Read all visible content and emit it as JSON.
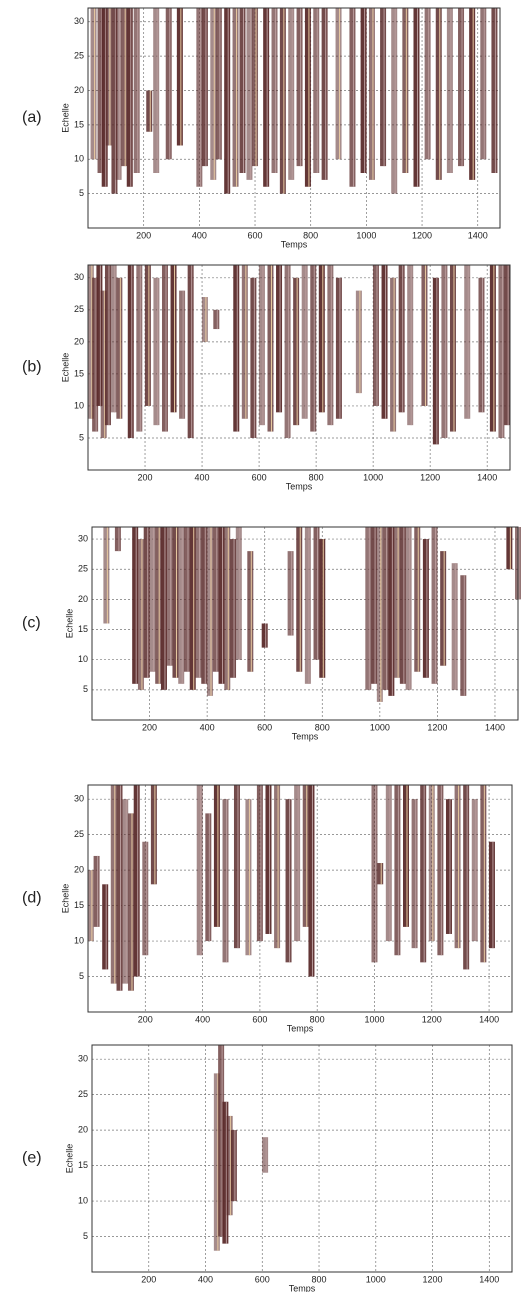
{
  "chart_data": [
    {
      "type": "range",
      "label": "(a)",
      "xlabel": "Temps",
      "ylabel": "Echelle",
      "xlim": [
        0,
        1480
      ],
      "ylim": [
        0,
        32
      ],
      "xticks": [
        200,
        400,
        600,
        800,
        1000,
        1200,
        1400
      ],
      "yticks": [
        5,
        10,
        15,
        20,
        25,
        30
      ],
      "grid": true,
      "color": "#5b2b2b",
      "x": [
        20,
        45,
        60,
        75,
        95,
        110,
        130,
        150,
        175,
        220,
        245,
        290,
        330,
        400,
        420,
        450,
        470,
        500,
        530,
        555,
        580,
        600,
        640,
        670,
        700,
        730,
        760,
        790,
        820,
        850,
        900,
        950,
        990,
        1020,
        1060,
        1100,
        1140,
        1180,
        1220,
        1260,
        1300,
        1340,
        1380,
        1420,
        1460
      ],
      "low": [
        10,
        8,
        6,
        12,
        5,
        7,
        9,
        6,
        8,
        14,
        8,
        10,
        12,
        6,
        9,
        7,
        10,
        5,
        6,
        8,
        7,
        9,
        6,
        8,
        5,
        7,
        9,
        6,
        8,
        7,
        10,
        6,
        8,
        7,
        9,
        5,
        8,
        6,
        10,
        7,
        8,
        9,
        7,
        10,
        8
      ],
      "high": [
        32,
        32,
        32,
        32,
        32,
        32,
        32,
        32,
        32,
        20,
        32,
        32,
        32,
        32,
        32,
        32,
        32,
        32,
        32,
        32,
        32,
        32,
        32,
        32,
        32,
        32,
        32,
        32,
        32,
        32,
        32,
        32,
        32,
        32,
        32,
        32,
        32,
        32,
        32,
        32,
        32,
        32,
        32,
        32,
        32
      ]
    },
    {
      "type": "range",
      "label": "(b)",
      "xlabel": "Temps",
      "ylabel": "Echelle",
      "xlim": [
        0,
        1480
      ],
      "ylim": [
        0,
        32
      ],
      "xticks": [
        200,
        400,
        600,
        800,
        1000,
        1200,
        1400
      ],
      "yticks": [
        5,
        10,
        15,
        20,
        25,
        30
      ],
      "grid": true,
      "color": "#5b2b2b",
      "x": [
        10,
        25,
        40,
        55,
        70,
        90,
        110,
        150,
        180,
        210,
        240,
        270,
        300,
        330,
        360,
        410,
        450,
        520,
        550,
        580,
        610,
        640,
        670,
        700,
        730,
        760,
        790,
        820,
        850,
        880,
        950,
        1010,
        1040,
        1070,
        1100,
        1130,
        1180,
        1220,
        1250,
        1280,
        1330,
        1380,
        1420,
        1450,
        1470
      ],
      "low": [
        8,
        6,
        10,
        5,
        7,
        9,
        8,
        5,
        6,
        10,
        7,
        6,
        9,
        8,
        5,
        20,
        22,
        6,
        8,
        5,
        7,
        6,
        9,
        5,
        7,
        8,
        6,
        9,
        7,
        8,
        12,
        10,
        8,
        6,
        9,
        7,
        10,
        4,
        5,
        6,
        8,
        9,
        6,
        5,
        7
      ],
      "high": [
        32,
        30,
        32,
        28,
        32,
        32,
        30,
        32,
        32,
        32,
        30,
        32,
        32,
        28,
        32,
        27,
        25,
        32,
        32,
        30,
        32,
        32,
        32,
        32,
        30,
        32,
        32,
        32,
        32,
        30,
        28,
        32,
        32,
        30,
        32,
        32,
        32,
        30,
        32,
        32,
        32,
        30,
        32,
        32,
        32
      ]
    },
    {
      "type": "range",
      "label": "(c)",
      "xlabel": "Temps",
      "ylabel": "Echelle",
      "xlim": [
        0,
        1480
      ],
      "ylim": [
        0,
        32
      ],
      "xticks": [
        200,
        400,
        600,
        800,
        1000,
        1200,
        1400
      ],
      "yticks": [
        5,
        10,
        15,
        20,
        25,
        30
      ],
      "grid": true,
      "color": "#5b2b2b",
      "x": [
        50,
        90,
        150,
        170,
        190,
        210,
        230,
        250,
        270,
        290,
        310,
        330,
        350,
        370,
        390,
        410,
        430,
        450,
        470,
        490,
        510,
        550,
        600,
        690,
        720,
        750,
        780,
        800,
        960,
        980,
        1000,
        1020,
        1040,
        1060,
        1080,
        1100,
        1130,
        1160,
        1190,
        1220,
        1260,
        1290,
        1450,
        1480
      ],
      "low": [
        16,
        28,
        6,
        5,
        7,
        8,
        6,
        5,
        9,
        7,
        6,
        8,
        5,
        7,
        6,
        4,
        8,
        6,
        5,
        7,
        10,
        8,
        12,
        14,
        8,
        6,
        10,
        7,
        5,
        6,
        3,
        5,
        4,
        7,
        6,
        5,
        8,
        7,
        6,
        9,
        5,
        4,
        25,
        20
      ],
      "high": [
        32,
        32,
        32,
        30,
        32,
        32,
        32,
        32,
        32,
        32,
        32,
        32,
        32,
        32,
        32,
        32,
        32,
        32,
        32,
        30,
        32,
        28,
        16,
        28,
        32,
        32,
        32,
        30,
        32,
        32,
        32,
        32,
        32,
        32,
        32,
        32,
        32,
        30,
        32,
        28,
        26,
        24,
        32,
        32
      ]
    },
    {
      "type": "range",
      "label": "(d)",
      "xlabel": "Temps",
      "ylabel": "Echelle",
      "xlim": [
        0,
        1480
      ],
      "ylim": [
        0,
        32
      ],
      "xticks": [
        200,
        400,
        600,
        800,
        1000,
        1200,
        1400
      ],
      "yticks": [
        5,
        10,
        15,
        20,
        25,
        30
      ],
      "grid": true,
      "color": "#5b2b2b",
      "x": [
        10,
        30,
        60,
        90,
        110,
        130,
        150,
        170,
        200,
        230,
        390,
        420,
        450,
        480,
        520,
        560,
        600,
        630,
        660,
        700,
        730,
        760,
        780,
        1000,
        1020,
        1050,
        1080,
        1110,
        1140,
        1170,
        1200,
        1230,
        1260,
        1290,
        1320,
        1350,
        1380,
        1410
      ],
      "low": [
        10,
        12,
        6,
        4,
        3,
        4,
        3,
        5,
        8,
        18,
        8,
        10,
        12,
        7,
        9,
        8,
        10,
        11,
        9,
        7,
        10,
        12,
        5,
        7,
        18,
        10,
        8,
        12,
        9,
        7,
        10,
        8,
        11,
        9,
        6,
        10,
        7,
        9
      ],
      "high": [
        20,
        22,
        18,
        32,
        32,
        30,
        28,
        32,
        24,
        32,
        32,
        28,
        32,
        30,
        32,
        30,
        32,
        32,
        32,
        30,
        32,
        32,
        32,
        32,
        21,
        32,
        32,
        32,
        30,
        32,
        32,
        32,
        30,
        32,
        32,
        30,
        32,
        24
      ]
    },
    {
      "type": "range",
      "label": "(e)",
      "xlabel": "Temps",
      "ylabel": "Echelle",
      "xlim": [
        0,
        1480
      ],
      "ylim": [
        0,
        32
      ],
      "xticks": [
        200,
        400,
        600,
        800,
        1000,
        1200,
        1400
      ],
      "yticks": [
        5,
        10,
        15,
        20,
        25,
        30
      ],
      "grid": true,
      "color": "#5b2b2b",
      "x": [
        440,
        455,
        470,
        485,
        500,
        610
      ],
      "low": [
        3,
        5,
        4,
        8,
        10,
        14
      ],
      "high": [
        28,
        32,
        24,
        22,
        20,
        19
      ]
    }
  ]
}
